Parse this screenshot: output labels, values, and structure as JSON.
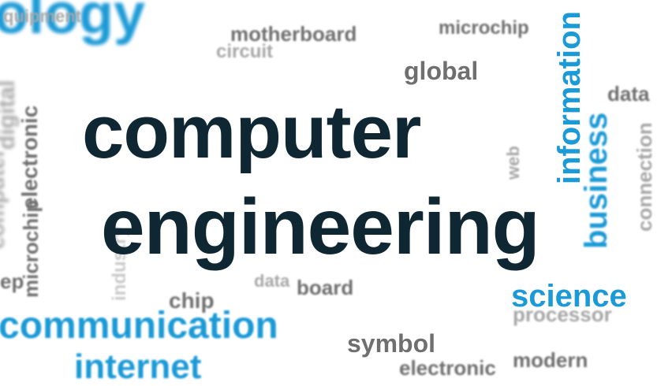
{
  "headline": {
    "line1": "computer",
    "line2": "engineering"
  },
  "words": {
    "ology": "ology",
    "equipment": "quipment",
    "motherboard": "motherboard",
    "circuit": "circuit",
    "microchip_top": "microchip",
    "global": "global",
    "information": "information",
    "business": "business",
    "data_right": "data",
    "connection": "connection",
    "web": "web",
    "digital": "digital",
    "electronic_left": "electronic",
    "computer_left": "computer",
    "microchip_left": "microchip",
    "industry": "industry",
    "data_mid": "data",
    "board": "board",
    "chip": "chip",
    "science": "science",
    "processor": "processor",
    "communication": "communication",
    "internet": "internet",
    "symbol": "symbol",
    "electronic_bottom": "electronic",
    "modern": "modern",
    "ep": "ep"
  },
  "colors": {
    "dark": "#0f2733",
    "blue": "#1c9ad6",
    "gray": "#6f6f6f"
  }
}
